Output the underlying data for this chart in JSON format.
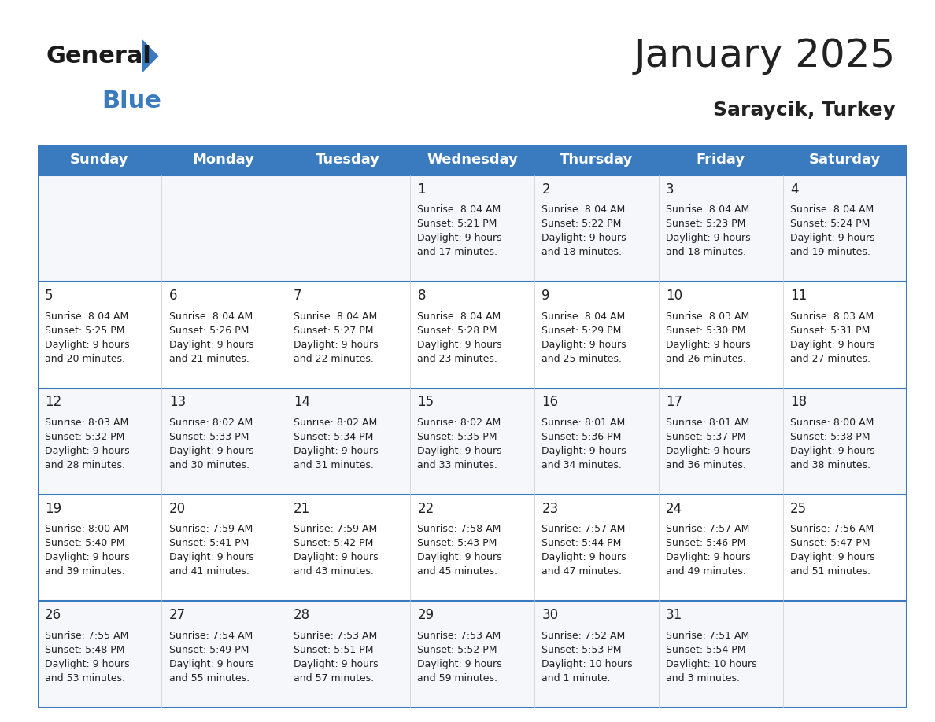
{
  "title": "January 2025",
  "subtitle": "Saraycik, Turkey",
  "header_color": "#3a7abf",
  "header_text_color": "#ffffff",
  "cell_bg_even": "#f0f4f8",
  "cell_bg_odd": "#ffffff",
  "border_color": "#3a7abf",
  "text_color": "#222222",
  "days_of_week": [
    "Sunday",
    "Monday",
    "Tuesday",
    "Wednesday",
    "Thursday",
    "Friday",
    "Saturday"
  ],
  "weeks": [
    [
      {
        "day": "",
        "info": ""
      },
      {
        "day": "",
        "info": ""
      },
      {
        "day": "",
        "info": ""
      },
      {
        "day": "1",
        "info": "Sunrise: 8:04 AM\nSunset: 5:21 PM\nDaylight: 9 hours\nand 17 minutes."
      },
      {
        "day": "2",
        "info": "Sunrise: 8:04 AM\nSunset: 5:22 PM\nDaylight: 9 hours\nand 18 minutes."
      },
      {
        "day": "3",
        "info": "Sunrise: 8:04 AM\nSunset: 5:23 PM\nDaylight: 9 hours\nand 18 minutes."
      },
      {
        "day": "4",
        "info": "Sunrise: 8:04 AM\nSunset: 5:24 PM\nDaylight: 9 hours\nand 19 minutes."
      }
    ],
    [
      {
        "day": "5",
        "info": "Sunrise: 8:04 AM\nSunset: 5:25 PM\nDaylight: 9 hours\nand 20 minutes."
      },
      {
        "day": "6",
        "info": "Sunrise: 8:04 AM\nSunset: 5:26 PM\nDaylight: 9 hours\nand 21 minutes."
      },
      {
        "day": "7",
        "info": "Sunrise: 8:04 AM\nSunset: 5:27 PM\nDaylight: 9 hours\nand 22 minutes."
      },
      {
        "day": "8",
        "info": "Sunrise: 8:04 AM\nSunset: 5:28 PM\nDaylight: 9 hours\nand 23 minutes."
      },
      {
        "day": "9",
        "info": "Sunrise: 8:04 AM\nSunset: 5:29 PM\nDaylight: 9 hours\nand 25 minutes."
      },
      {
        "day": "10",
        "info": "Sunrise: 8:03 AM\nSunset: 5:30 PM\nDaylight: 9 hours\nand 26 minutes."
      },
      {
        "day": "11",
        "info": "Sunrise: 8:03 AM\nSunset: 5:31 PM\nDaylight: 9 hours\nand 27 minutes."
      }
    ],
    [
      {
        "day": "12",
        "info": "Sunrise: 8:03 AM\nSunset: 5:32 PM\nDaylight: 9 hours\nand 28 minutes."
      },
      {
        "day": "13",
        "info": "Sunrise: 8:02 AM\nSunset: 5:33 PM\nDaylight: 9 hours\nand 30 minutes."
      },
      {
        "day": "14",
        "info": "Sunrise: 8:02 AM\nSunset: 5:34 PM\nDaylight: 9 hours\nand 31 minutes."
      },
      {
        "day": "15",
        "info": "Sunrise: 8:02 AM\nSunset: 5:35 PM\nDaylight: 9 hours\nand 33 minutes."
      },
      {
        "day": "16",
        "info": "Sunrise: 8:01 AM\nSunset: 5:36 PM\nDaylight: 9 hours\nand 34 minutes."
      },
      {
        "day": "17",
        "info": "Sunrise: 8:01 AM\nSunset: 5:37 PM\nDaylight: 9 hours\nand 36 minutes."
      },
      {
        "day": "18",
        "info": "Sunrise: 8:00 AM\nSunset: 5:38 PM\nDaylight: 9 hours\nand 38 minutes."
      }
    ],
    [
      {
        "day": "19",
        "info": "Sunrise: 8:00 AM\nSunset: 5:40 PM\nDaylight: 9 hours\nand 39 minutes."
      },
      {
        "day": "20",
        "info": "Sunrise: 7:59 AM\nSunset: 5:41 PM\nDaylight: 9 hours\nand 41 minutes."
      },
      {
        "day": "21",
        "info": "Sunrise: 7:59 AM\nSunset: 5:42 PM\nDaylight: 9 hours\nand 43 minutes."
      },
      {
        "day": "22",
        "info": "Sunrise: 7:58 AM\nSunset: 5:43 PM\nDaylight: 9 hours\nand 45 minutes."
      },
      {
        "day": "23",
        "info": "Sunrise: 7:57 AM\nSunset: 5:44 PM\nDaylight: 9 hours\nand 47 minutes."
      },
      {
        "day": "24",
        "info": "Sunrise: 7:57 AM\nSunset: 5:46 PM\nDaylight: 9 hours\nand 49 minutes."
      },
      {
        "day": "25",
        "info": "Sunrise: 7:56 AM\nSunset: 5:47 PM\nDaylight: 9 hours\nand 51 minutes."
      }
    ],
    [
      {
        "day": "26",
        "info": "Sunrise: 7:55 AM\nSunset: 5:48 PM\nDaylight: 9 hours\nand 53 minutes."
      },
      {
        "day": "27",
        "info": "Sunrise: 7:54 AM\nSunset: 5:49 PM\nDaylight: 9 hours\nand 55 minutes."
      },
      {
        "day": "28",
        "info": "Sunrise: 7:53 AM\nSunset: 5:51 PM\nDaylight: 9 hours\nand 57 minutes."
      },
      {
        "day": "29",
        "info": "Sunrise: 7:53 AM\nSunset: 5:52 PM\nDaylight: 9 hours\nand 59 minutes."
      },
      {
        "day": "30",
        "info": "Sunrise: 7:52 AM\nSunset: 5:53 PM\nDaylight: 10 hours\nand 1 minute."
      },
      {
        "day": "31",
        "info": "Sunrise: 7:51 AM\nSunset: 5:54 PM\nDaylight: 10 hours\nand 3 minutes."
      },
      {
        "day": "",
        "info": ""
      }
    ]
  ],
  "logo_general_color": "#1a1a1a",
  "logo_blue_color": "#3a7abf",
  "title_fontsize": 36,
  "subtitle_fontsize": 18,
  "header_fontsize": 13,
  "day_num_fontsize": 12,
  "cell_text_fontsize": 9
}
